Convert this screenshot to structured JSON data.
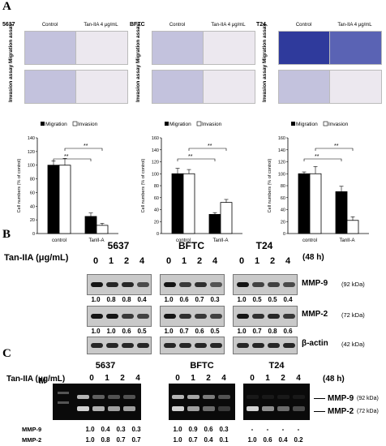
{
  "panels": {
    "a": "A",
    "b": "B",
    "c": "C"
  },
  "micro": {
    "cell_lines": [
      "5637",
      "BFTC",
      "T24"
    ],
    "col_labels": [
      "Control",
      "Tan-IIA 4 μg/mL"
    ],
    "row_labels": [
      "Migration assay",
      "Invasion assay"
    ]
  },
  "chart_data": [
    {
      "type": "bar",
      "categories": [
        "control",
        "TanII-A"
      ],
      "series": [
        {
          "name": "Migration",
          "values": [
            100,
            25
          ]
        },
        {
          "name": "Invasion",
          "values": [
            100,
            12
          ]
        }
      ],
      "errors": [
        [
          6,
          5
        ],
        [
          10,
          3
        ]
      ],
      "ylabel": "Cell numbers (% of control)",
      "ylim": [
        0,
        140
      ],
      "yticks": [
        0,
        20,
        40,
        60,
        80,
        100,
        120,
        140
      ],
      "sig": [
        "**",
        "**"
      ],
      "legend": "top"
    },
    {
      "type": "bar",
      "categories": [
        "control",
        "TanII-A"
      ],
      "series": [
        {
          "name": "Migration",
          "values": [
            100,
            32
          ]
        },
        {
          "name": "Invasion",
          "values": [
            100,
            52
          ]
        }
      ],
      "errors": [
        [
          9,
          3
        ],
        [
          7,
          5
        ]
      ],
      "ylabel": "Cell numbers (% of control)",
      "ylim": [
        0,
        160
      ],
      "yticks": [
        0,
        20,
        40,
        60,
        80,
        100,
        120,
        140,
        160
      ],
      "sig": [
        "**",
        "**"
      ],
      "legend": "top"
    },
    {
      "type": "bar",
      "categories": [
        "control",
        "TanII-A"
      ],
      "series": [
        {
          "name": "Migration",
          "values": [
            100,
            70
          ]
        },
        {
          "name": "Invasion",
          "values": [
            100,
            22
          ]
        }
      ],
      "errors": [
        [
          3,
          9
        ],
        [
          12,
          6
        ]
      ],
      "ylabel": "Cell numbers (% of control)",
      "ylim": [
        0,
        160
      ],
      "yticks": [
        0,
        20,
        40,
        60,
        80,
        100,
        120,
        140,
        160
      ],
      "sig": [
        "**",
        "**"
      ],
      "legend": "top"
    }
  ],
  "western": {
    "treatment_label": "Tan-IIA (μg/mL)",
    "doses": [
      "0",
      "1",
      "2",
      "4"
    ],
    "time": "(48 h)",
    "cell_lines": [
      "5637",
      "BFTC",
      "T24"
    ],
    "proteins": [
      {
        "name": "MMP-9",
        "kda": "(92 kDa)"
      },
      {
        "name": "MMP-2",
        "kda": "(72 kDa)"
      },
      {
        "name": "β-actin",
        "kda": "(42 kDa)"
      }
    ],
    "quant": {
      "mmp9": [
        [
          "1.0",
          "0.8",
          "0.8",
          "0.4"
        ],
        [
          "1.0",
          "0.6",
          "0.7",
          "0.3"
        ],
        [
          "1.0",
          "0.5",
          "0.5",
          "0.4"
        ]
      ],
      "mmp2": [
        [
          "1.0",
          "1.0",
          "0.6",
          "0.5"
        ],
        [
          "1.0",
          "0.7",
          "0.6",
          "0.5"
        ],
        [
          "1.0",
          "0.7",
          "0.8",
          "0.6"
        ]
      ]
    }
  },
  "zymo": {
    "treatment_label": "Tan-IIA (μg/mL)",
    "marker": "M",
    "doses": [
      "0",
      "1",
      "2",
      "4"
    ],
    "time": "(48 h)",
    "cell_lines": [
      "5637",
      "BFTC",
      "T24"
    ],
    "bands": [
      {
        "name": "MMP-9",
        "kda": "(92 kDa)"
      },
      {
        "name": "MMP-2",
        "kda": "(72 kDa)"
      }
    ],
    "row_names": [
      "MMP-9",
      "MMP-2"
    ],
    "quant": {
      "mmp9": [
        [
          "1.0",
          "0.4",
          "0.3",
          "0.3"
        ],
        [
          "1.0",
          "0.9",
          "0.6",
          "0.3"
        ],
        [
          "-",
          "-",
          "-",
          "-"
        ]
      ],
      "mmp2": [
        [
          "1.0",
          "0.8",
          "0.7",
          "0.7"
        ],
        [
          "1.0",
          "0.7",
          "0.4",
          "0.1"
        ],
        [
          "1.0",
          "0.6",
          "0.4",
          "0.2"
        ]
      ]
    }
  }
}
